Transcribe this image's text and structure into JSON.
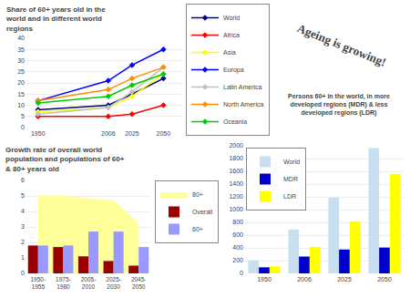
{
  "chart_data": [
    {
      "type": "line",
      "title": "Share of 60+ years old in the\nworld and in different world\nregions",
      "x": [
        1950,
        2006,
        2025,
        2050
      ],
      "series": [
        {
          "name": "World",
          "color": "#000080",
          "marker": "diamond",
          "values": [
            8,
            10,
            15,
            22
          ]
        },
        {
          "name": "Africa",
          "color": "#ff0000",
          "marker": "diamond",
          "values": [
            5,
            5,
            6,
            10
          ]
        },
        {
          "name": "Asia",
          "color": "#ffff00",
          "marker": "diamond",
          "values": [
            7,
            9,
            14,
            24
          ]
        },
        {
          "name": "Europa",
          "color": "#0000ff",
          "marker": "diamond",
          "values": [
            12,
            21,
            28,
            35
          ]
        },
        {
          "name": "Latin America",
          "color": "#c0c0c0",
          "marker": "diamond",
          "values": [
            6,
            9,
            16,
            27
          ]
        },
        {
          "name": "North America",
          "color": "#ff8c00",
          "marker": "diamond",
          "values": [
            12,
            17,
            22,
            27
          ]
        },
        {
          "name": "Oceania",
          "color": "#00cc00",
          "marker": "diamond",
          "values": [
            11,
            14,
            19,
            24
          ]
        }
      ],
      "xlim": [
        1940,
        2065
      ],
      "xticks": [
        1950,
        2006,
        2025,
        2050
      ],
      "ylim": [
        0,
        40
      ],
      "yticks": [
        0,
        5,
        10,
        15,
        20,
        25,
        30,
        35,
        40
      ],
      "grid": true,
      "legend": "upper left"
    },
    {
      "type": "bar",
      "title": "Growth rate of overall world\npopulation and populations of 60+\n& 80+ years old",
      "categories": [
        "1950-\n1955",
        "1975-\n1980",
        "2005-\n2010",
        "2025-\n2030",
        "2045-\n2050"
      ],
      "series": [
        {
          "name": "80+",
          "type": "area",
          "color": "#ffff99",
          "values": [
            5.0,
            5.0,
            4.8,
            4.7,
            3.2
          ]
        },
        {
          "name": "Overall",
          "color": "#990000",
          "values": [
            1.8,
            1.7,
            1.1,
            0.8,
            0.5
          ]
        },
        {
          "name": "60+",
          "color": "#9999ff",
          "values": [
            1.8,
            1.8,
            2.7,
            2.7,
            1.7
          ]
        }
      ],
      "ylim": [
        0,
        6
      ],
      "yticks": [
        0,
        1,
        2,
        3,
        4,
        5,
        6
      ],
      "grid": true,
      "legend": "upper right"
    },
    {
      "type": "bar",
      "title": "Persons 60+ in the world, in more\ndeveloped regions (MDR) & less\ndeveloped regions (LDR)",
      "annotations": [
        "Ageing is growing!"
      ],
      "categories": [
        "1950",
        "2006",
        "2025",
        "2050"
      ],
      "series": [
        {
          "name": "World",
          "color": "#c8dff0",
          "values": [
            205,
            688,
            1190,
            1964
          ]
        },
        {
          "name": "MDR",
          "color": "#0000cc",
          "values": [
            95,
            264,
            374,
            405
          ]
        },
        {
          "name": "LDR",
          "color": "#ffff00",
          "values": [
            110,
            416,
            816,
            1559
          ]
        }
      ],
      "ylim": [
        0,
        2000
      ],
      "yticks": [
        0,
        200,
        400,
        600,
        800,
        1000,
        1200,
        1400,
        1600,
        1800,
        2000
      ],
      "grid": true,
      "legend": "upper left"
    }
  ]
}
